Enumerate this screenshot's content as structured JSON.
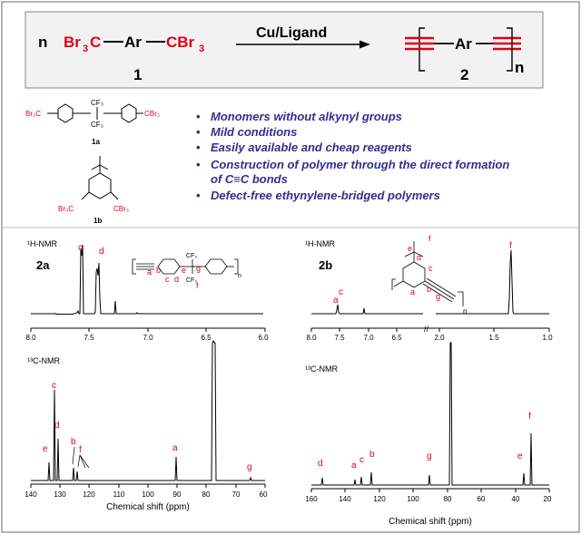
{
  "colors": {
    "red": "#e0001b",
    "blue": "#2f2f8f",
    "black": "#000000",
    "panel_bg": "#f2f2f2"
  },
  "scheme": {
    "n_left": "n",
    "reactant_left": "Br",
    "reactant_left_sub": "3",
    "reactant_left_c": "C",
    "dash1": "−",
    "ar": "Ar",
    "dash2": "−",
    "reactant_right_c": "CBr",
    "reactant_right_sub": "3",
    "label_1": "1",
    "arrow_label": "Cu/Ligand",
    "product_ar": "Ar",
    "product_n": "n",
    "label_2": "2"
  },
  "structures": {
    "s1a_left_group": "Br₃C",
    "s1a_right_group": "CBr₃",
    "s1a_top": "CF₃",
    "s1a_bottom": "CF₃",
    "s1a_label": "1a",
    "s1b_left_group": "Br₃C",
    "s1b_right_group": "CBr₃",
    "s1b_label": "1b"
  },
  "bullets": [
    "Monomers without alkynyl groups",
    "Mild conditions",
    "Easily available and cheap reagents",
    "Construction of polymer through the direct formation",
    "of C≡C bonds",
    "Defect-free ethynylene-bridged polymers"
  ],
  "spectra": {
    "h2a": {
      "nmr": "¹H-NMR",
      "compound": "2a",
      "ticks": [
        "8.0",
        "7.5",
        "7.0",
        "6.5",
        "6.0"
      ],
      "peak_labels": [
        "c",
        "d"
      ],
      "struct_labels": [
        "a",
        "b",
        "c",
        "d",
        "e",
        "g",
        "f"
      ],
      "cf3_top": "CF₃",
      "cf3_bottom": "CF₃",
      "n": "n"
    },
    "h2b": {
      "nmr": "¹H-NMR",
      "compound": "2b",
      "ticks": [
        "8.0",
        "7.5",
        "7.0",
        "6.5",
        "2.0",
        "1.5",
        "1.0"
      ],
      "peak_labels": [
        "a",
        "c",
        "f"
      ],
      "struct_labels": [
        "e",
        "f",
        "d",
        "c",
        "a",
        "b",
        "g"
      ],
      "n": "n"
    },
    "c2a": {
      "nmr": "¹³C-NMR",
      "ticks": [
        "140",
        "130",
        "120",
        "110",
        "100",
        "90",
        "80",
        "70",
        "60"
      ],
      "xlabel": "Chemical shift (ppm)",
      "peak_labels": [
        "c",
        "d",
        "e",
        "b",
        "f",
        "a",
        "g"
      ]
    },
    "c2b": {
      "nmr": "¹³C-NMR",
      "ticks": [
        "160",
        "140",
        "120",
        "100",
        "80",
        "60",
        "40",
        "20"
      ],
      "xlabel": "Chemical shift (ppm)",
      "peak_labels": [
        "d",
        "a",
        "c",
        "b",
        "g",
        "f",
        "e"
      ]
    }
  }
}
